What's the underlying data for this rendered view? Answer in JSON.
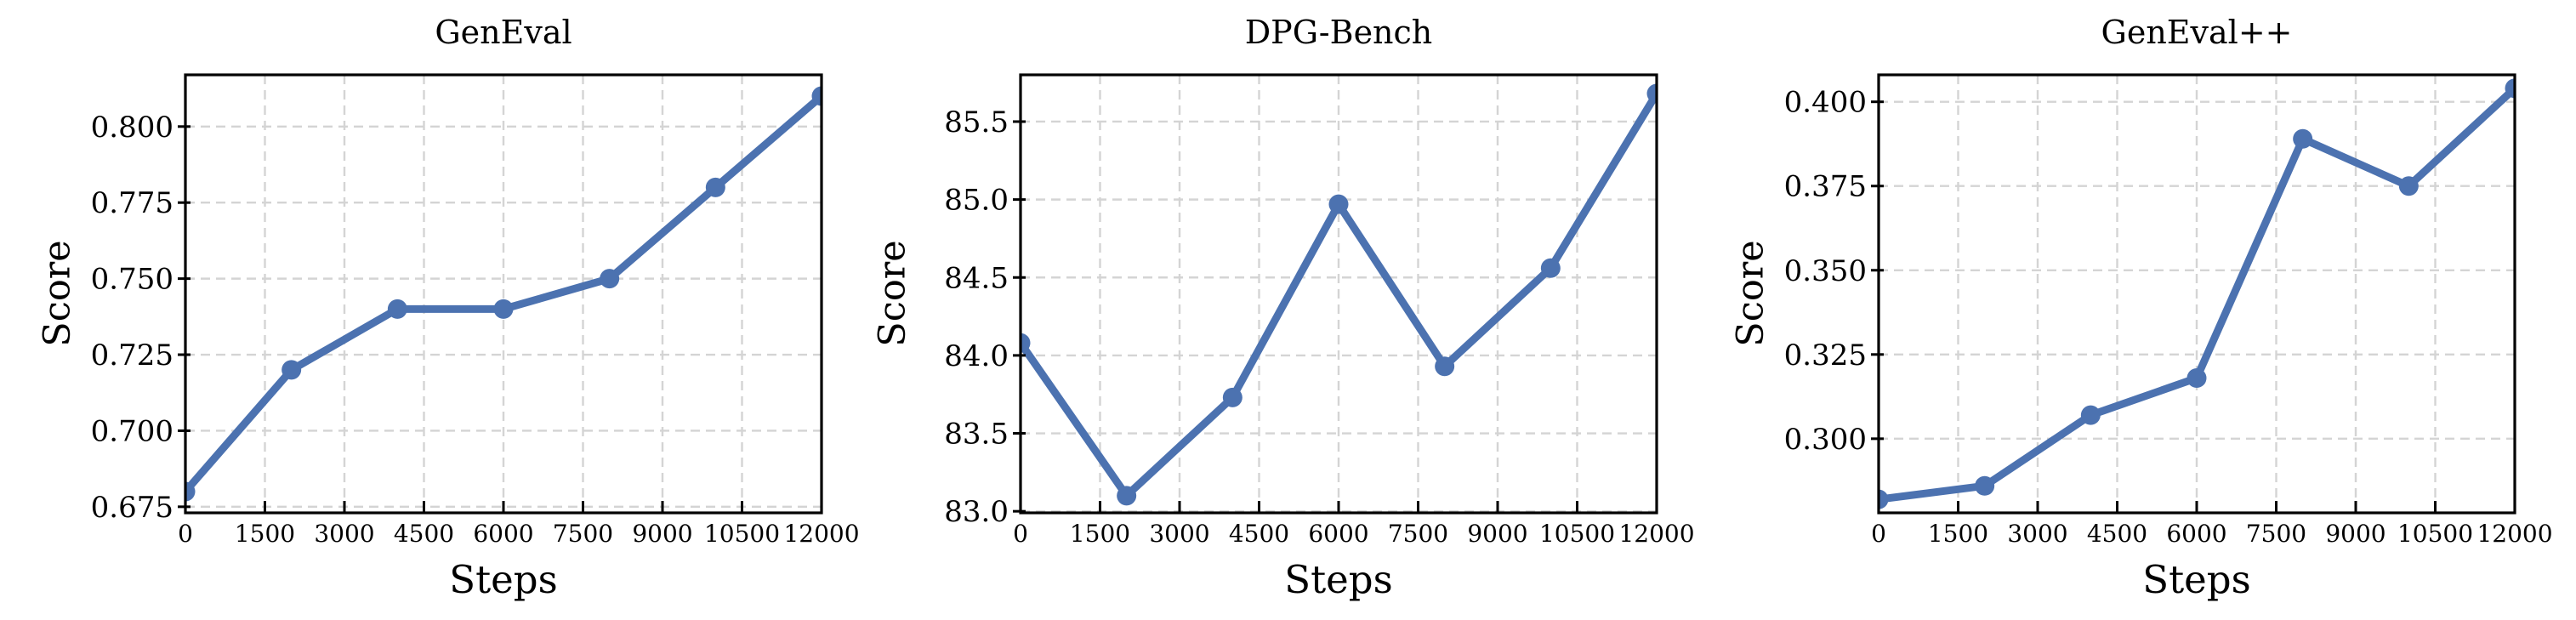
{
  "style": {
    "background_color": "#ffffff",
    "line_color": "#4C72B0",
    "marker_color": "#4C72B0",
    "grid_color": "#d4d4d4",
    "spine_color": "#000000",
    "text_color": "#000000"
  },
  "chart_data": [
    {
      "type": "line",
      "title": "GenEval",
      "xlabel": "Steps",
      "ylabel": "Score",
      "x": [
        0,
        2000,
        4000,
        6000,
        8000,
        10000,
        12000
      ],
      "y": [
        0.68,
        0.72,
        0.74,
        0.74,
        0.75,
        0.78,
        0.81
      ],
      "xlim": [
        0,
        12000
      ],
      "ylim": [
        0.673,
        0.817
      ],
      "xticks": [
        0,
        1500,
        3000,
        4500,
        6000,
        7500,
        9000,
        10500,
        12000
      ],
      "xtick_labels": [
        "0",
        "1500",
        "3000",
        "4500",
        "6000",
        "7500",
        "9000",
        "10500",
        "12000"
      ],
      "yticks": [
        0.675,
        0.7,
        0.725,
        0.75,
        0.775,
        0.8
      ],
      "ytick_labels": [
        "0.675",
        "0.700",
        "0.725",
        "0.750",
        "0.775",
        "0.800"
      ],
      "grid": true,
      "legend": null
    },
    {
      "type": "line",
      "title": "DPG-Bench",
      "xlabel": "Steps",
      "ylabel": "Score",
      "x": [
        0,
        2000,
        4000,
        6000,
        8000,
        10000,
        12000
      ],
      "y": [
        84.08,
        83.1,
        83.73,
        84.97,
        83.93,
        84.56,
        85.68
      ],
      "xlim": [
        0,
        12000
      ],
      "ylim": [
        82.99,
        85.8
      ],
      "xticks": [
        0,
        1500,
        3000,
        4500,
        6000,
        7500,
        9000,
        10500,
        12000
      ],
      "xtick_labels": [
        "0",
        "1500",
        "3000",
        "4500",
        "6000",
        "7500",
        "9000",
        "10500",
        "12000"
      ],
      "yticks": [
        83.0,
        83.5,
        84.0,
        84.5,
        85.0,
        85.5
      ],
      "ytick_labels": [
        "83.0",
        "83.5",
        "84.0",
        "84.5",
        "85.0",
        "85.5"
      ],
      "grid": true,
      "legend": null
    },
    {
      "type": "line",
      "title": "GenEval++",
      "xlabel": "Steps",
      "ylabel": "Score",
      "x": [
        0,
        2000,
        4000,
        6000,
        8000,
        10000,
        12000
      ],
      "y": [
        0.282,
        0.286,
        0.307,
        0.318,
        0.389,
        0.375,
        0.404
      ],
      "xlim": [
        0,
        12000
      ],
      "ylim": [
        0.278,
        0.408
      ],
      "xticks": [
        0,
        1500,
        3000,
        4500,
        6000,
        7500,
        9000,
        10500,
        12000
      ],
      "xtick_labels": [
        "0",
        "1500",
        "3000",
        "4500",
        "6000",
        "7500",
        "9000",
        "10500",
        "12000"
      ],
      "yticks": [
        0.3,
        0.325,
        0.35,
        0.375,
        0.4
      ],
      "ytick_labels": [
        "0.300",
        "0.325",
        "0.350",
        "0.375",
        "0.400"
      ],
      "grid": true,
      "legend": null
    }
  ]
}
